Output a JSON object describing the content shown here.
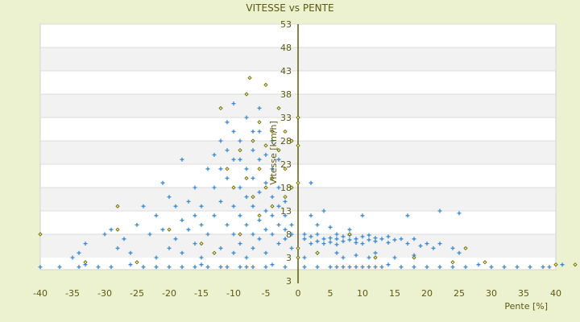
{
  "chart_data": {
    "type": "scatter",
    "title": "VITESSE vs PENTE",
    "xlabel": "Pente [%]",
    "ylabel": "Vitesse [km/h]",
    "xlim": [
      -40,
      42
    ],
    "ylim": [
      0.4,
      53
    ],
    "grid": true,
    "legend": "none",
    "x_ticks": [
      "-40",
      "-35",
      "-30",
      "-25",
      "-20",
      "-15",
      "-10",
      "-5",
      "0",
      "5",
      "10",
      "15",
      "20",
      "25",
      "30",
      "35",
      "40"
    ],
    "y_ticks": [
      "53",
      "48",
      "43",
      "38",
      "33",
      "28",
      "23",
      "18",
      "13",
      "8",
      "3",
      "3"
    ],
    "colors": {
      "series1": "#3a87d8",
      "series2": "#6b6b10",
      "axis": "#5a5a10",
      "band": "#f2f2f2",
      "background": "#ecf1cf"
    },
    "series": [
      {
        "marker": "plus",
        "points": [
          [
            -40,
            1
          ],
          [
            -37,
            1
          ],
          [
            -34,
            1
          ],
          [
            -33,
            1.5
          ],
          [
            -31,
            1
          ],
          [
            -29,
            1
          ],
          [
            -26,
            1.5
          ],
          [
            -24,
            1
          ],
          [
            -22,
            1
          ],
          [
            -20,
            1
          ],
          [
            -18,
            1
          ],
          [
            -16,
            1
          ],
          [
            -15,
            1.5
          ],
          [
            -14,
            1
          ],
          [
            -12,
            1
          ],
          [
            -11,
            1
          ],
          [
            -9,
            1
          ],
          [
            -8,
            1
          ],
          [
            -7,
            1
          ],
          [
            -5,
            1
          ],
          [
            -4,
            1.5
          ],
          [
            -2,
            1
          ],
          [
            1,
            1
          ],
          [
            3,
            1
          ],
          [
            5,
            1
          ],
          [
            6,
            1
          ],
          [
            7,
            1
          ],
          [
            8,
            1
          ],
          [
            9,
            1
          ],
          [
            10,
            1
          ],
          [
            11,
            1
          ],
          [
            12,
            1
          ],
          [
            13,
            1
          ],
          [
            14,
            1.5
          ],
          [
            16,
            1
          ],
          [
            18,
            1
          ],
          [
            20,
            1
          ],
          [
            22,
            1
          ],
          [
            24,
            1
          ],
          [
            26,
            1
          ],
          [
            28,
            1.5
          ],
          [
            30,
            1
          ],
          [
            32,
            1
          ],
          [
            34,
            1
          ],
          [
            36,
            1
          ],
          [
            38,
            1
          ],
          [
            39,
            1
          ],
          [
            41,
            1.5
          ],
          [
            1,
            7
          ],
          [
            1,
            8
          ],
          [
            2,
            6
          ],
          [
            2,
            7.5
          ],
          [
            3,
            6.5
          ],
          [
            3,
            8
          ],
          [
            4,
            7
          ],
          [
            4,
            6
          ],
          [
            5,
            7.2
          ],
          [
            5,
            6.3
          ],
          [
            6,
            7
          ],
          [
            6,
            8
          ],
          [
            6,
            5.8
          ],
          [
            7,
            6.5
          ],
          [
            7,
            7.5
          ],
          [
            8,
            6.8
          ],
          [
            8,
            7.8
          ],
          [
            9,
            6.2
          ],
          [
            9,
            7
          ],
          [
            10,
            7.5
          ],
          [
            10,
            6
          ],
          [
            11,
            6.8
          ],
          [
            11,
            7.8
          ],
          [
            12,
            6.5
          ],
          [
            12,
            7.2
          ],
          [
            13,
            7
          ],
          [
            14,
            6.2
          ],
          [
            14,
            7.5
          ],
          [
            15,
            6.8
          ],
          [
            16,
            7
          ],
          [
            17,
            6
          ],
          [
            18,
            7
          ],
          [
            19,
            5.5
          ],
          [
            20,
            6
          ],
          [
            21,
            5
          ],
          [
            22,
            6
          ],
          [
            24,
            5
          ],
          [
            25,
            4
          ],
          [
            3,
            10
          ],
          [
            5,
            9.5
          ],
          [
            8,
            9
          ],
          [
            10,
            12
          ],
          [
            2,
            12
          ],
          [
            4,
            13
          ],
          [
            17,
            12
          ],
          [
            22,
            13
          ],
          [
            25,
            12.5
          ],
          [
            6,
            4
          ],
          [
            9,
            3.5
          ],
          [
            12,
            4
          ],
          [
            15,
            3
          ],
          [
            18,
            3.5
          ],
          [
            2,
            19
          ],
          [
            3,
            4
          ],
          [
            1,
            3
          ],
          [
            7,
            3
          ],
          [
            11,
            3
          ],
          [
            -14,
            8
          ],
          [
            -13,
            12
          ],
          [
            -13,
            18
          ],
          [
            -12,
            15
          ],
          [
            -12,
            22
          ],
          [
            -12,
            5
          ],
          [
            -11,
            10
          ],
          [
            -11,
            20
          ],
          [
            -11,
            26
          ],
          [
            -10,
            8
          ],
          [
            -10,
            14
          ],
          [
            -10,
            24
          ],
          [
            -10,
            30
          ],
          [
            -10,
            4
          ],
          [
            -9,
            12
          ],
          [
            -9,
            18
          ],
          [
            -9,
            28
          ],
          [
            -9,
            6
          ],
          [
            -8,
            10
          ],
          [
            -8,
            16
          ],
          [
            -8,
            22
          ],
          [
            -8,
            33
          ],
          [
            -8,
            3
          ],
          [
            -7,
            8
          ],
          [
            -7,
            14
          ],
          [
            -7,
            20
          ],
          [
            -7,
            26
          ],
          [
            -7,
            5
          ],
          [
            -6,
            11
          ],
          [
            -6,
            17
          ],
          [
            -6,
            24
          ],
          [
            -6,
            30
          ],
          [
            -6,
            7
          ],
          [
            -5,
            9
          ],
          [
            -5,
            13
          ],
          [
            -5,
            19
          ],
          [
            -5,
            25
          ],
          [
            -5,
            4
          ],
          [
            -4,
            8
          ],
          [
            -4,
            12
          ],
          [
            -4,
            16
          ],
          [
            -4,
            22
          ],
          [
            -3,
            6
          ],
          [
            -3,
            10
          ],
          [
            -3,
            14
          ],
          [
            -3,
            18
          ],
          [
            -2,
            7
          ],
          [
            -2,
            9
          ],
          [
            -2,
            12
          ],
          [
            -2,
            15
          ],
          [
            -1,
            8
          ],
          [
            -1,
            10
          ],
          [
            -1,
            5
          ],
          [
            -15,
            10
          ],
          [
            -15,
            14
          ],
          [
            -15,
            3
          ],
          [
            -16,
            6
          ],
          [
            -16,
            12
          ],
          [
            -17,
            9
          ],
          [
            -17,
            15
          ],
          [
            -18,
            4
          ],
          [
            -18,
            11
          ],
          [
            -19,
            7
          ],
          [
            -19,
            14
          ],
          [
            -20,
            5
          ],
          [
            -20,
            16
          ],
          [
            -21,
            9
          ],
          [
            -21,
            19
          ],
          [
            -22,
            3
          ],
          [
            -22,
            12
          ],
          [
            -23,
            8
          ],
          [
            -24,
            14
          ],
          [
            -25,
            10
          ],
          [
            -26,
            4
          ],
          [
            -27,
            7
          ],
          [
            -28,
            5
          ],
          [
            -29,
            9
          ],
          [
            -30,
            8
          ],
          [
            -33,
            6
          ],
          [
            -34,
            4
          ],
          [
            -35,
            3
          ],
          [
            -14,
            22
          ],
          [
            -13,
            25
          ],
          [
            -16,
            18
          ],
          [
            -18,
            24
          ],
          [
            -11,
            32
          ],
          [
            -9,
            24
          ],
          [
            -12,
            28
          ],
          [
            -7,
            30
          ],
          [
            -4,
            28
          ],
          [
            -3,
            24
          ],
          [
            -10,
            36
          ],
          [
            -6,
            35
          ]
        ]
      },
      {
        "marker": "diamond",
        "points": [
          [
            -40,
            8
          ],
          [
            -33,
            2
          ],
          [
            -28,
            14
          ],
          [
            -28,
            9
          ],
          [
            -12,
            35
          ],
          [
            -11,
            22
          ],
          [
            -10,
            18
          ],
          [
            -9,
            26
          ],
          [
            -8,
            38
          ],
          [
            -8,
            20
          ],
          [
            -7,
            28
          ],
          [
            -7,
            16
          ],
          [
            -6,
            32
          ],
          [
            -6,
            22
          ],
          [
            -5,
            40
          ],
          [
            -5,
            27
          ],
          [
            -5,
            18
          ],
          [
            -4,
            30
          ],
          [
            -4,
            20
          ],
          [
            -3,
            35
          ],
          [
            -3,
            26
          ],
          [
            -2,
            30
          ],
          [
            -2,
            22
          ],
          [
            -1,
            28
          ],
          [
            -1,
            18
          ],
          [
            -6,
            12
          ],
          [
            -4,
            14
          ],
          [
            -2,
            16
          ],
          [
            0,
            33
          ],
          [
            0,
            5
          ],
          [
            0,
            3
          ],
          [
            0,
            19
          ],
          [
            0,
            27
          ],
          [
            3,
            4
          ],
          [
            8,
            8
          ],
          [
            12,
            3
          ],
          [
            18,
            3
          ],
          [
            24,
            2
          ],
          [
            26,
            5
          ],
          [
            29,
            2
          ],
          [
            40,
            1.5
          ],
          [
            43,
            1.5
          ],
          [
            -25,
            2
          ],
          [
            -20,
            9
          ],
          [
            -15,
            6
          ],
          [
            -13,
            4
          ],
          [
            -9,
            8
          ],
          [
            -7.5,
            41.5
          ]
        ]
      }
    ]
  }
}
